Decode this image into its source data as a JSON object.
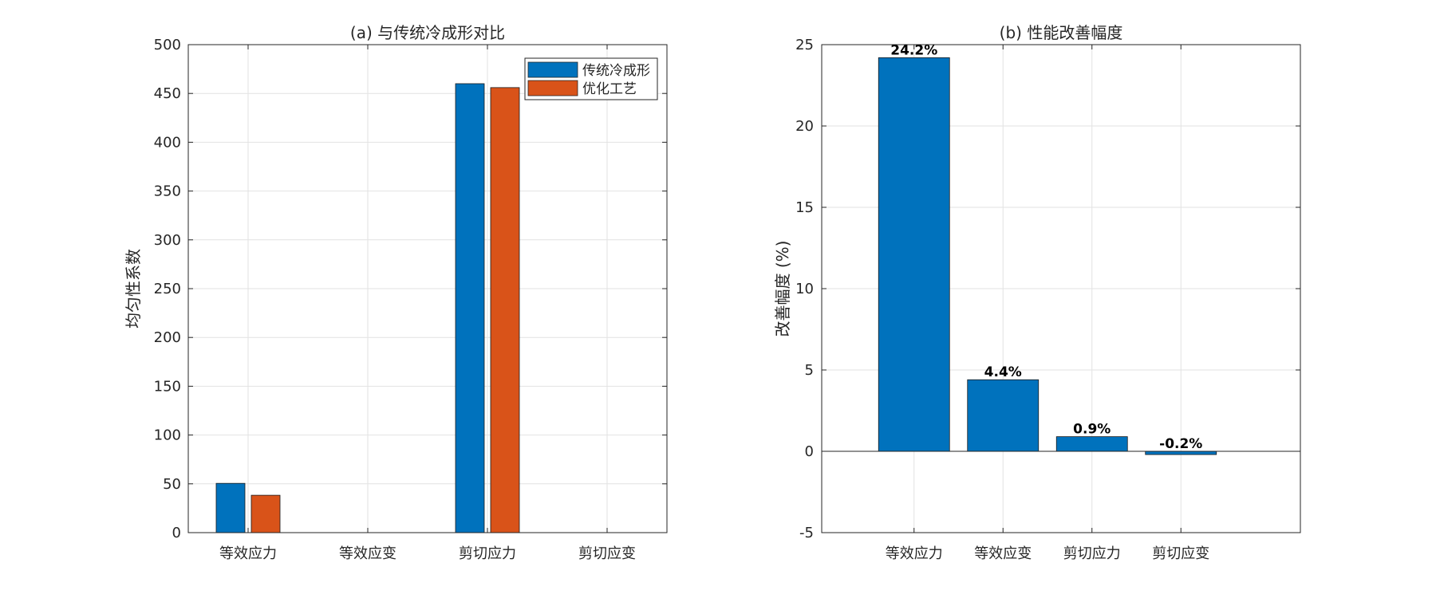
{
  "chart_data": [
    {
      "type": "bar",
      "title": "(a) 与传统冷成形对比",
      "xlabel": "",
      "ylabel": "均匀性系数",
      "categories": [
        "等效应力",
        "等效应变",
        "剪切应力",
        "剪切应变"
      ],
      "series": [
        {
          "name": "传统冷成形",
          "values": [
            50.5,
            0,
            460,
            0
          ],
          "color": "#0072BD"
        },
        {
          "name": "优化工艺",
          "values": [
            38.3,
            0,
            456,
            0
          ],
          "color": "#D95319"
        }
      ],
      "ylim": [
        0,
        500
      ],
      "yticks": [
        0,
        50,
        100,
        150,
        200,
        250,
        300,
        350,
        400,
        450,
        500
      ],
      "grid": true,
      "legend": "top-right"
    },
    {
      "type": "bar",
      "title": "(b) 性能改善幅度",
      "xlabel": "",
      "ylabel": "改善幅度 (%)",
      "categories": [
        "等效应力",
        "等效应变",
        "剪切应力",
        "剪切应变"
      ],
      "values": [
        24.2,
        4.4,
        0.9,
        -0.2
      ],
      "data_labels": [
        "24.2%",
        "4.4%",
        "0.9%",
        "-0.2%"
      ],
      "color": "#0072BD",
      "ylim": [
        -5,
        25
      ],
      "yticks": [
        -5,
        0,
        5,
        10,
        15,
        20,
        25
      ],
      "grid": true
    }
  ]
}
